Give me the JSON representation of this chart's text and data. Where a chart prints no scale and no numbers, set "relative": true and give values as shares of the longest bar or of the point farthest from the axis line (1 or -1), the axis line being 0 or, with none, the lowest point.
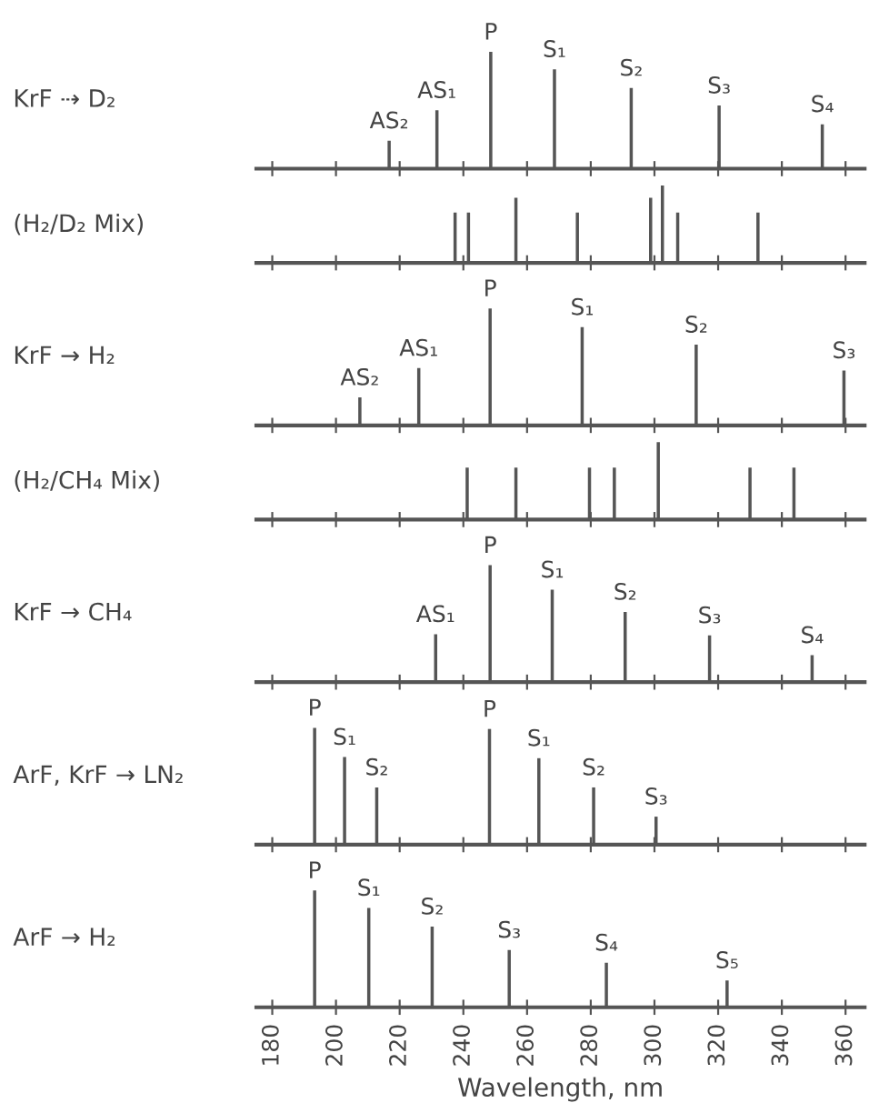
{
  "chart_data": [
    {
      "type": "bar",
      "title": "KrF ⇢ D₂",
      "relative": true,
      "color": "#555555",
      "xlim": [
        175,
        366
      ],
      "xticks": [
        180,
        200,
        220,
        240,
        260,
        280,
        300,
        320,
        340,
        360
      ],
      "tick_labels": false,
      "x": [
        216.7,
        231.7,
        248.6,
        268.6,
        292.7,
        320.3,
        352.7
      ],
      "values": [
        0.24,
        0.5,
        1,
        0.85,
        0.69,
        0.54,
        0.38
      ],
      "annotations": [
        {
          "text": "AS₂",
          "x": 216.7,
          "y": 0.24
        },
        {
          "text": "AS₁",
          "x": 231.7,
          "y": 0.5
        },
        {
          "text": "P",
          "x": 248.6,
          "y": 1
        },
        {
          "text": "S₁",
          "x": 268.6,
          "y": 0.85
        },
        {
          "text": "S₂",
          "x": 292.7,
          "y": 0.69
        },
        {
          "text": "S₃",
          "x": 320.3,
          "y": 0.54
        },
        {
          "text": "S₄",
          "x": 352.7,
          "y": 0.38
        }
      ]
    },
    {
      "type": "bar",
      "title": "(H₂/D₂ Mix)",
      "relative": true,
      "color": "#555555",
      "xlim": [
        175,
        366
      ],
      "xticks": [
        180,
        200,
        220,
        240,
        260,
        280,
        300,
        320,
        340,
        360
      ],
      "tick_labels": false,
      "x": [
        237.4,
        241.6,
        256.5,
        275.8,
        298.8,
        302.5,
        307.3,
        332.5
      ],
      "values": [
        0.65,
        0.65,
        0.84,
        0.65,
        0.84,
        1,
        0.65,
        0.65
      ]
    },
    {
      "type": "bar",
      "title": "KrF → H₂",
      "relative": true,
      "color": "#555555",
      "xlim": [
        175,
        366
      ],
      "xticks": [
        180,
        200,
        220,
        240,
        260,
        280,
        300,
        320,
        340,
        360
      ],
      "tick_labels": false,
      "x": [
        207.5,
        226,
        248.4,
        277.3,
        313.1,
        359.5
      ],
      "values": [
        0.24,
        0.49,
        1,
        0.84,
        0.69,
        0.47
      ],
      "annotations": [
        {
          "text": "AS₂",
          "x": 207.5,
          "y": 0.24
        },
        {
          "text": "AS₁",
          "x": 226,
          "y": 0.49
        },
        {
          "text": "P",
          "x": 248.4,
          "y": 1
        },
        {
          "text": "S₁",
          "x": 277.3,
          "y": 0.84
        },
        {
          "text": "S₂",
          "x": 313.1,
          "y": 0.69
        },
        {
          "text": "S₃",
          "x": 359.5,
          "y": 0.47
        }
      ]
    },
    {
      "type": "bar",
      "title": "(H₂/CH₄ Mix)",
      "relative": true,
      "color": "#555555",
      "xlim": [
        175,
        366
      ],
      "xticks": [
        180,
        200,
        220,
        240,
        260,
        280,
        300,
        320,
        340,
        360
      ],
      "tick_labels": false,
      "x": [
        241.2,
        256.5,
        279.6,
        287.4,
        301.2,
        330.0,
        343.8
      ],
      "values": [
        0.67,
        0.67,
        0.67,
        0.67,
        1,
        0.67,
        0.67
      ]
    },
    {
      "type": "bar",
      "title": "KrF → CH₄",
      "relative": true,
      "color": "#555555",
      "xlim": [
        175,
        366
      ],
      "xticks": [
        180,
        200,
        220,
        240,
        260,
        280,
        300,
        320,
        340,
        360
      ],
      "tick_labels": false,
      "x": [
        231.3,
        248.4,
        267.9,
        290.8,
        317.3,
        349.5
      ],
      "values": [
        0.41,
        1,
        0.79,
        0.6,
        0.4,
        0.23
      ],
      "annotations": [
        {
          "text": "AS₁",
          "x": 231.3,
          "y": 0.41
        },
        {
          "text": "P",
          "x": 248.4,
          "y": 1
        },
        {
          "text": "S₁",
          "x": 267.9,
          "y": 0.79
        },
        {
          "text": "S₂",
          "x": 290.8,
          "y": 0.6
        },
        {
          "text": "S₃",
          "x": 317.3,
          "y": 0.4
        },
        {
          "text": "S₄",
          "x": 349.5,
          "y": 0.23
        }
      ]
    },
    {
      "type": "bar",
      "title": "ArF, KrF → LN₂",
      "relative": true,
      "color": "#555555",
      "xlim": [
        175,
        366
      ],
      "xticks": [
        180,
        200,
        220,
        240,
        260,
        280,
        300,
        320,
        340,
        360
      ],
      "tick_labels": false,
      "x": [
        193.3,
        202.7,
        212.8,
        248.2,
        263.7,
        280.9,
        300.5
      ],
      "values": [
        1,
        0.75,
        0.49,
        0.99,
        0.74,
        0.49,
        0.24
      ],
      "annotations": [
        {
          "text": "P",
          "x": 193.3,
          "y": 1
        },
        {
          "text": "S₁",
          "x": 202.7,
          "y": 0.75
        },
        {
          "text": "S₂",
          "x": 212.8,
          "y": 0.49
        },
        {
          "text": "P",
          "x": 248.2,
          "y": 0.99
        },
        {
          "text": "S₁",
          "x": 263.7,
          "y": 0.74
        },
        {
          "text": "S₂",
          "x": 280.9,
          "y": 0.49
        },
        {
          "text": "S₃",
          "x": 300.5,
          "y": 0.24
        }
      ]
    },
    {
      "type": "bar",
      "title": "ArF → H₂",
      "relative": true,
      "color": "#555555",
      "xlim": [
        175,
        366
      ],
      "xticks": [
        180,
        200,
        220,
        240,
        260,
        280,
        300,
        320,
        340,
        360
      ],
      "xlabel": "Wavelength, nm",
      "x": [
        193.3,
        210.3,
        230.2,
        254.4,
        284.9,
        322.8
      ],
      "values": [
        1,
        0.85,
        0.69,
        0.49,
        0.38,
        0.23
      ],
      "annotations": [
        {
          "text": "P",
          "x": 193.3,
          "y": 1
        },
        {
          "text": "S₁",
          "x": 210.3,
          "y": 0.85
        },
        {
          "text": "S₂",
          "x": 230.2,
          "y": 0.69
        },
        {
          "text": "S₃",
          "x": 254.4,
          "y": 0.49
        },
        {
          "text": "S₄",
          "x": 284.9,
          "y": 0.38
        },
        {
          "text": "S₅",
          "x": 322.8,
          "y": 0.23
        }
      ]
    }
  ]
}
